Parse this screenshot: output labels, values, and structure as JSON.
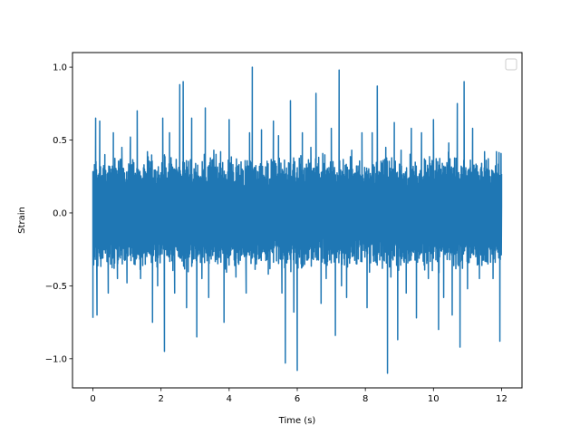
{
  "chart_data": {
    "type": "line",
    "title": "",
    "xlabel": "Time (s)",
    "ylabel": "Strain",
    "xlim": [
      -0.6,
      12.6
    ],
    "ylim": [
      -1.2,
      1.1
    ],
    "xticks": [
      0,
      2,
      4,
      6,
      8,
      10,
      12
    ],
    "xtick_labels": [
      "0",
      "2",
      "4",
      "6",
      "8",
      "10",
      "12"
    ],
    "yticks": [
      -1.0,
      -0.5,
      0.0,
      0.5,
      1.0
    ],
    "ytick_labels": [
      "−1.0",
      "−0.5",
      "0.0",
      "0.5",
      "1.0"
    ],
    "grid": false,
    "legend": {
      "placement": "top-right",
      "entries": []
    },
    "series": [
      {
        "color": "#1f77b4",
        "x_start": 0,
        "x_end": 12,
        "peaks": [
          [
            0.0,
            -0.72
          ],
          [
            0.03,
            0.22
          ],
          [
            0.08,
            0.65
          ],
          [
            0.12,
            -0.7
          ],
          [
            0.2,
            0.63
          ],
          [
            0.28,
            0.22
          ],
          [
            0.35,
            0.4
          ],
          [
            0.45,
            -0.55
          ],
          [
            0.6,
            0.55
          ],
          [
            0.72,
            -0.45
          ],
          [
            0.85,
            0.45
          ],
          [
            0.92,
            -0.32
          ],
          [
            1.0,
            -0.48
          ],
          [
            1.1,
            0.52
          ],
          [
            1.3,
            0.7
          ],
          [
            1.4,
            -0.45
          ],
          [
            1.6,
            0.42
          ],
          [
            1.75,
            -0.75
          ],
          [
            1.9,
            -0.5
          ],
          [
            2.05,
            0.65
          ],
          [
            2.1,
            -0.95
          ],
          [
            2.25,
            0.55
          ],
          [
            2.4,
            -0.55
          ],
          [
            2.55,
            0.88
          ],
          [
            2.65,
            0.9
          ],
          [
            2.75,
            -0.65
          ],
          [
            2.9,
            0.65
          ],
          [
            3.05,
            -0.85
          ],
          [
            3.2,
            -0.45
          ],
          [
            3.3,
            0.72
          ],
          [
            3.4,
            -0.58
          ],
          [
            3.55,
            0.43
          ],
          [
            3.75,
            0.42
          ],
          [
            3.85,
            -0.75
          ],
          [
            4.0,
            0.64
          ],
          [
            4.2,
            -0.44
          ],
          [
            4.35,
            0.35
          ],
          [
            4.5,
            -0.55
          ],
          [
            4.6,
            0.55
          ],
          [
            4.68,
            1.0
          ],
          [
            4.8,
            -0.35
          ],
          [
            4.95,
            0.57
          ],
          [
            5.15,
            -0.42
          ],
          [
            5.3,
            0.63
          ],
          [
            5.45,
            0.53
          ],
          [
            5.55,
            -0.55
          ],
          [
            5.65,
            -1.03
          ],
          [
            5.8,
            0.77
          ],
          [
            5.9,
            -0.68
          ],
          [
            6.0,
            -1.08
          ],
          [
            6.15,
            0.55
          ],
          [
            6.25,
            -0.28
          ],
          [
            6.4,
            0.45
          ],
          [
            6.55,
            0.82
          ],
          [
            6.7,
            -0.62
          ],
          [
            6.85,
            -0.45
          ],
          [
            7.0,
            0.58
          ],
          [
            7.12,
            -0.84
          ],
          [
            7.23,
            0.98
          ],
          [
            7.3,
            -0.5
          ],
          [
            7.45,
            -0.58
          ],
          [
            7.6,
            0.43
          ],
          [
            7.75,
            -0.35
          ],
          [
            7.9,
            0.55
          ],
          [
            8.05,
            -0.65
          ],
          [
            8.2,
            0.55
          ],
          [
            8.35,
            0.87
          ],
          [
            8.5,
            -0.38
          ],
          [
            8.6,
            0.45
          ],
          [
            8.65,
            -1.1
          ],
          [
            8.75,
            -0.44
          ],
          [
            8.85,
            0.62
          ],
          [
            8.95,
            -0.87
          ],
          [
            9.05,
            0.43
          ],
          [
            9.2,
            -0.55
          ],
          [
            9.35,
            0.58
          ],
          [
            9.5,
            -0.72
          ],
          [
            9.65,
            0.55
          ],
          [
            9.85,
            -0.45
          ],
          [
            10.0,
            0.64
          ],
          [
            10.15,
            -0.8
          ],
          [
            10.3,
            -0.58
          ],
          [
            10.45,
            0.48
          ],
          [
            10.55,
            -0.7
          ],
          [
            10.7,
            0.75
          ],
          [
            10.78,
            -0.92
          ],
          [
            10.9,
            0.9
          ],
          [
            11.0,
            -0.52
          ],
          [
            11.15,
            0.58
          ],
          [
            11.35,
            -0.45
          ],
          [
            11.5,
            0.42
          ],
          [
            11.6,
            -0.35
          ],
          [
            11.75,
            -0.45
          ],
          [
            11.85,
            0.42
          ],
          [
            11.95,
            -0.88
          ],
          [
            12.0,
            0.05
          ]
        ]
      }
    ]
  }
}
